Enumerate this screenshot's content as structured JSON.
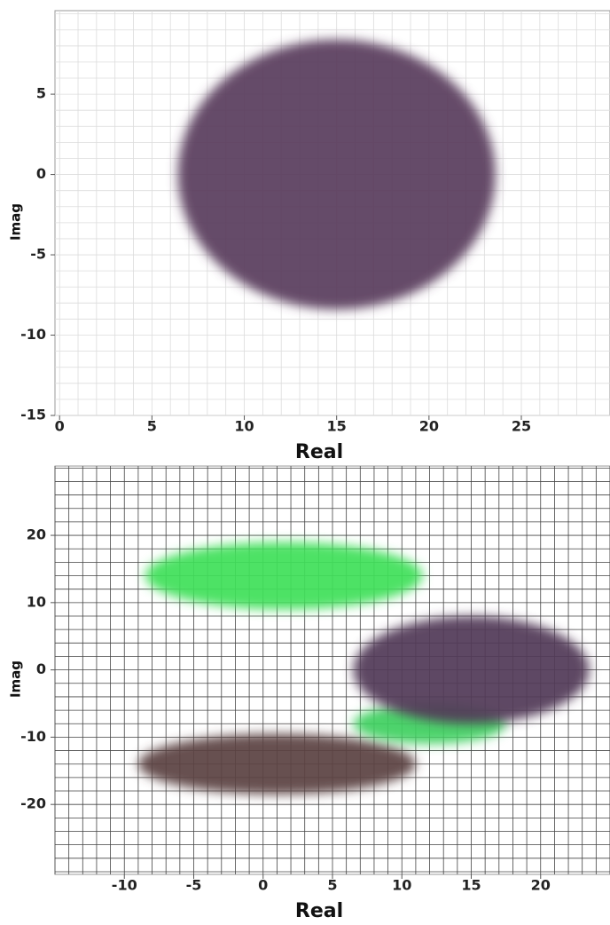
{
  "chart_data": [
    {
      "type": "scatter",
      "x_label": "Real",
      "y_label": "Imag",
      "xlim": [
        -0.25,
        29.8
      ],
      "ylim": [
        -15,
        10.2
      ],
      "xticks": [
        0,
        5,
        10,
        15,
        20,
        25
      ],
      "yticks": [
        -15,
        -10,
        -5,
        0,
        5
      ],
      "grid": true,
      "grid_spacing": [
        1,
        1
      ],
      "grid_color": "#dcdcdc",
      "clusters": [
        {
          "x": 15,
          "y": 0,
          "x_spread": 8.6,
          "y_spread": 8.4,
          "color": "#5a3d5c"
        }
      ]
    },
    {
      "type": "scatter",
      "x_label": "Real",
      "y_label": "Imag",
      "xlim": [
        -15,
        25
      ],
      "ylim": [
        -30.4,
        30.3
      ],
      "xticks": [
        -10,
        -5,
        0,
        5,
        10,
        15,
        20
      ],
      "yticks": [
        -20,
        -10,
        0,
        10,
        20
      ],
      "grid": true,
      "grid_spacing": [
        1,
        2
      ],
      "grid_color": "#444444",
      "clusters": [
        {
          "x": 1.5,
          "y": 14,
          "x_spread": 10,
          "y_spread": 5,
          "color": "#3fe05a"
        },
        {
          "x": 1,
          "y": -14,
          "x_spread": 10,
          "y_spread": 4.5,
          "color": "#5b4242"
        },
        {
          "x": 12,
          "y": -8,
          "x_spread": 5.5,
          "y_spread": 3,
          "color": "#3fd060"
        },
        {
          "x": 15,
          "y": 0,
          "x_spread": 8.5,
          "y_spread": 8,
          "color": "#523a58"
        }
      ]
    }
  ]
}
